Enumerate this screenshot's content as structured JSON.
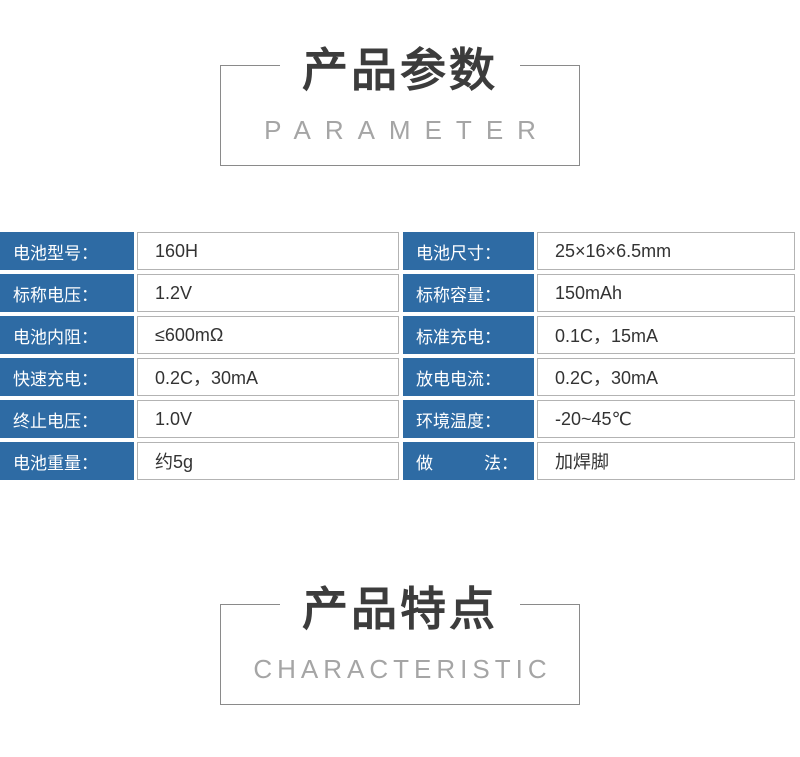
{
  "sections": {
    "parameter": {
      "title_cn": "产品参数",
      "title_en": "PARAMETER"
    },
    "characteristic": {
      "title_cn": "产品特点",
      "title_en": "CHARACTERISTIC"
    }
  },
  "colors": {
    "label_bg": "#2e6ba4",
    "label_text": "#ffffff",
    "value_text": "#333333",
    "value_border": "#b3b3b3",
    "box_border": "#8a8a8a",
    "title_cn": "#3c3c3c",
    "title_en": "#a5a5a5"
  },
  "spec_table": {
    "rows": [
      {
        "left_label": "电池型号：",
        "left_value": "160H",
        "right_label": "电池尺寸：",
        "right_value": "25×16×6.5mm"
      },
      {
        "left_label": "标称电压：",
        "left_value": "1.2V",
        "right_label": "标称容量：",
        "right_value": "150mAh"
      },
      {
        "left_label": "电池内阻：",
        "left_value": "≤600mΩ",
        "right_label": "标准充电：",
        "right_value": "0.1C，15mA"
      },
      {
        "left_label": "快速充电：",
        "left_value": "0.2C，30mA",
        "right_label": "放电电流：",
        "right_value": "0.2C，30mA"
      },
      {
        "left_label": "终止电压：",
        "left_value": "1.0V",
        "right_label": "环境温度：",
        "right_value": "-20~45℃"
      },
      {
        "left_label": "电池重量：",
        "left_value": "约5g",
        "right_label": "做　　　法：",
        "right_value": "加焊脚"
      }
    ]
  }
}
